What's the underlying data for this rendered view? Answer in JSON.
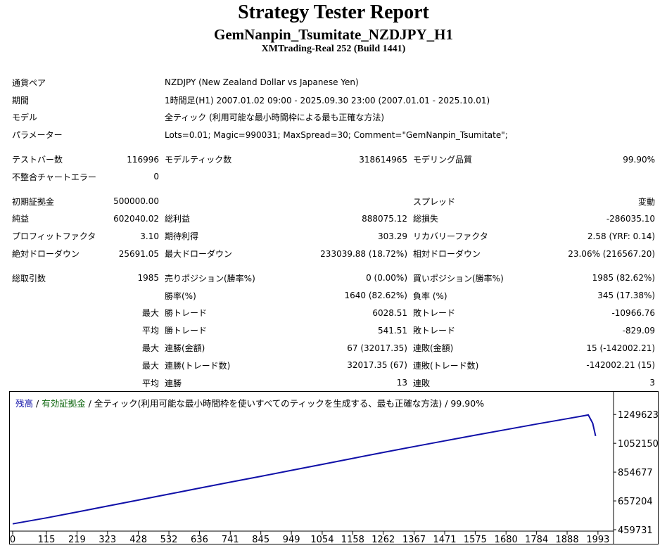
{
  "report": {
    "title": "Strategy Tester Report",
    "ea_name": "GemNanpin_Tsumitate_NZDJPY_H1",
    "server": "XMTrading-Real 252 (Build 1441)"
  },
  "info": {
    "pair_label": "通貨ペア",
    "pair_value": "NZDJPY (New Zealand Dollar vs Japanese Yen)",
    "period_label": "期間",
    "period_value": "1時間足(H1) 2007.01.02 09:00 - 2025.09.30 23:00 (2007.01.01 - 2025.10.01)",
    "model_label": "モデル",
    "model_value": "全ティック (利用可能な最小時間枠による最も正確な方法)",
    "params_label": "パラメーター",
    "params_value": "Lots=0.01; Magic=990031; MaxSpread=30; Comment=\"GemNanpin_Tsumitate\";"
  },
  "stats": {
    "bars_label": "テストバー数",
    "bars_value": "116996",
    "ticks_label": "モデルティック数",
    "ticks_value": "318614965",
    "quality_label": "モデリング品質",
    "quality_value": "99.90%",
    "mismatch_label": "不整合チャートエラー",
    "mismatch_value": "0",
    "deposit_label": "初期証拠金",
    "deposit_value": "500000.00",
    "spread_label": "スプレッド",
    "spread_value": "変動",
    "netprofit_label": "純益",
    "netprofit_value": "602040.02",
    "grossprofit_label": "総利益",
    "grossprofit_value": "888075.12",
    "grossloss_label": "総損失",
    "grossloss_value": "-286035.10",
    "pf_label": "プロフィットファクタ",
    "pf_value": "3.10",
    "expected_label": "期待利得",
    "expected_value": "303.29",
    "recovery_label": "リカバリーファクタ",
    "recovery_value": "2.58 (YRF: 0.14)",
    "absdd_label": "絶対ドローダウン",
    "absdd_value": "25691.05",
    "maxdd_label": "最大ドローダウン",
    "maxdd_value": "233039.88 (18.72%)",
    "reldd_label": "相対ドローダウン",
    "reldd_value": "23.06% (216567.20)",
    "trades_label": "総取引数",
    "trades_value": "1985",
    "short_label": "売りポジション(勝率%)",
    "short_value": "0 (0.00%)",
    "long_label": "買いポジション(勝率%)",
    "long_value": "1985 (82.62%)",
    "winrate_label": "勝率(%)",
    "winrate_value": "1640 (82.62%)",
    "lossrate_label": "負率 (%)",
    "lossrate_value": "345 (17.38%)",
    "max_label": "最大",
    "avg_label": "平均",
    "win_trade_label": "勝トレード",
    "loss_trade_label": "敗トレード",
    "max_win_value": "6028.51",
    "max_loss_value": "-10966.76",
    "avg_win_value": "541.51",
    "avg_loss_value": "-829.09",
    "consec_win_money_label": "連勝(金額)",
    "consec_win_money_value": "67 (32017.35)",
    "consec_loss_money_label": "連敗(金額)",
    "consec_loss_money_value": "15 (-142002.21)",
    "consec_win_trades_label": "連勝(トレード数)",
    "consec_win_trades_value": "32017.35 (67)",
    "consec_loss_trades_label": "連敗(トレード数)",
    "consec_loss_trades_value": "-142002.21 (15)",
    "avg_consec_win_label": "連勝",
    "avg_consec_win_value": "13",
    "avg_consec_loss_label": "連敗",
    "avg_consec_loss_value": "3"
  },
  "legend": {
    "balance": "残高",
    "sep1": " / ",
    "equity": "有効証拠金",
    "sep2": " / ",
    "rest": "全ティック(利用可能な最小時間枠を使いすべてのティックを生成する、最も正確な方法) / 99.90%"
  },
  "colors": {
    "balance": "#1010a8",
    "equity": "#106810"
  },
  "chart_data": {
    "type": "line",
    "x_ticks": [
      "0",
      "115",
      "219",
      "323",
      "428",
      "532",
      "636",
      "741",
      "845",
      "949",
      "1054",
      "1158",
      "1262",
      "1367",
      "1471",
      "1575",
      "1680",
      "1784",
      "1888",
      "1993"
    ],
    "y_ticks": [
      "1249623",
      "1052150",
      "854677",
      "657204",
      "459731"
    ],
    "xlim": [
      0,
      2046
    ],
    "ylim": [
      459731,
      1299000
    ],
    "series": [
      {
        "name": "残高",
        "x": [
          0,
          115,
          219,
          323,
          428,
          532,
          636,
          741,
          845,
          949,
          1054,
          1158,
          1262,
          1367,
          1471,
          1575,
          1680,
          1784,
          1888,
          1950,
          1960,
          1975,
          1985
        ],
        "y": [
          500000,
          541000,
          581000,
          622000,
          663000,
          704000,
          745000,
          786000,
          826000,
          867000,
          908000,
          949000,
          990000,
          1030000,
          1069000,
          1108000,
          1146000,
          1184000,
          1221000,
          1243000,
          1247000,
          1190000,
          1102000
        ]
      }
    ]
  }
}
